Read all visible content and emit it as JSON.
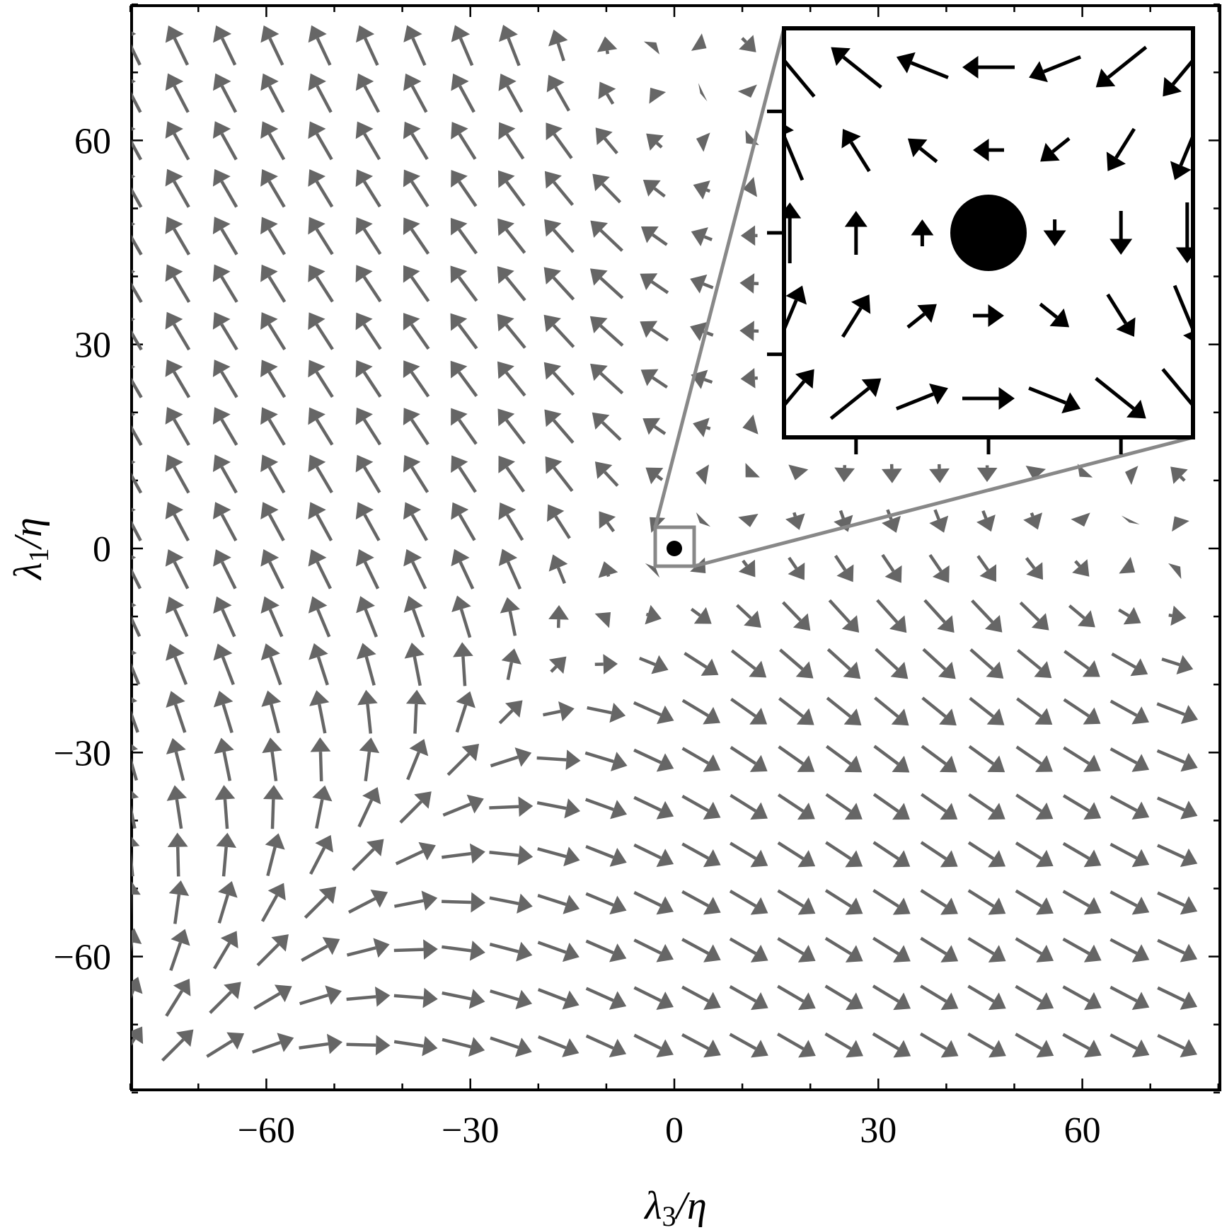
{
  "chart_data": {
    "type": "quiver",
    "title": "",
    "xlabel": "λ3/η",
    "ylabel": "λ1/η",
    "xlabel_parts": {
      "symbol": "λ",
      "sub": "3",
      "rest": "/η"
    },
    "ylabel_parts": {
      "symbol": "λ",
      "sub": "1",
      "rest": "/η"
    },
    "xlim": [
      -80,
      80
    ],
    "ylim": [
      -80,
      80
    ],
    "xticks": [
      -60,
      -30,
      0,
      30,
      60
    ],
    "yticks": [
      -60,
      -30,
      0,
      30,
      60
    ],
    "xtick_labels": [
      "−60",
      "−30",
      "0",
      "30",
      "60"
    ],
    "ytick_labels": [
      "−60",
      "−30",
      "0",
      "30",
      "60"
    ],
    "grid": false,
    "arrow_color": "#666666",
    "fixed_point": {
      "x": 0,
      "y": 0
    },
    "grid_x": [
      -80,
      -73,
      -66,
      -59,
      -52,
      -45,
      -38,
      -31,
      -24,
      -17,
      -10,
      -3,
      4,
      11,
      18,
      25,
      32,
      39,
      46,
      53,
      60,
      67,
      74
    ],
    "grid_y": [
      -73,
      -66,
      -59,
      -52,
      -45,
      -38,
      -31,
      -24,
      -17,
      -10,
      -3,
      4,
      11,
      18,
      25,
      32,
      39,
      46,
      53,
      60,
      67,
      74
    ],
    "field_form": {
      "u": "x*(c-x)/s + 2*y^2/s - 2*y",
      "v": "y*(c-y)/s + 2*x^2/s - 2*x",
      "c": 74,
      "s": 70
    },
    "inset": {
      "region": {
        "xlim": [
          -3,
          3
        ],
        "ylim": [
          -3,
          3
        ]
      },
      "arrow_color": "#000000",
      "axes_color": "#000000",
      "connector_color": "#888888",
      "grid_x": [
        -3.6,
        -2.4,
        -1.2,
        0,
        1.2,
        2.4,
        3.6
      ],
      "grid_y": [
        -3.0,
        -1.5,
        0,
        1.5,
        3.0
      ],
      "field_form": {
        "u": "-2*y",
        "v": "-2*x"
      }
    }
  }
}
